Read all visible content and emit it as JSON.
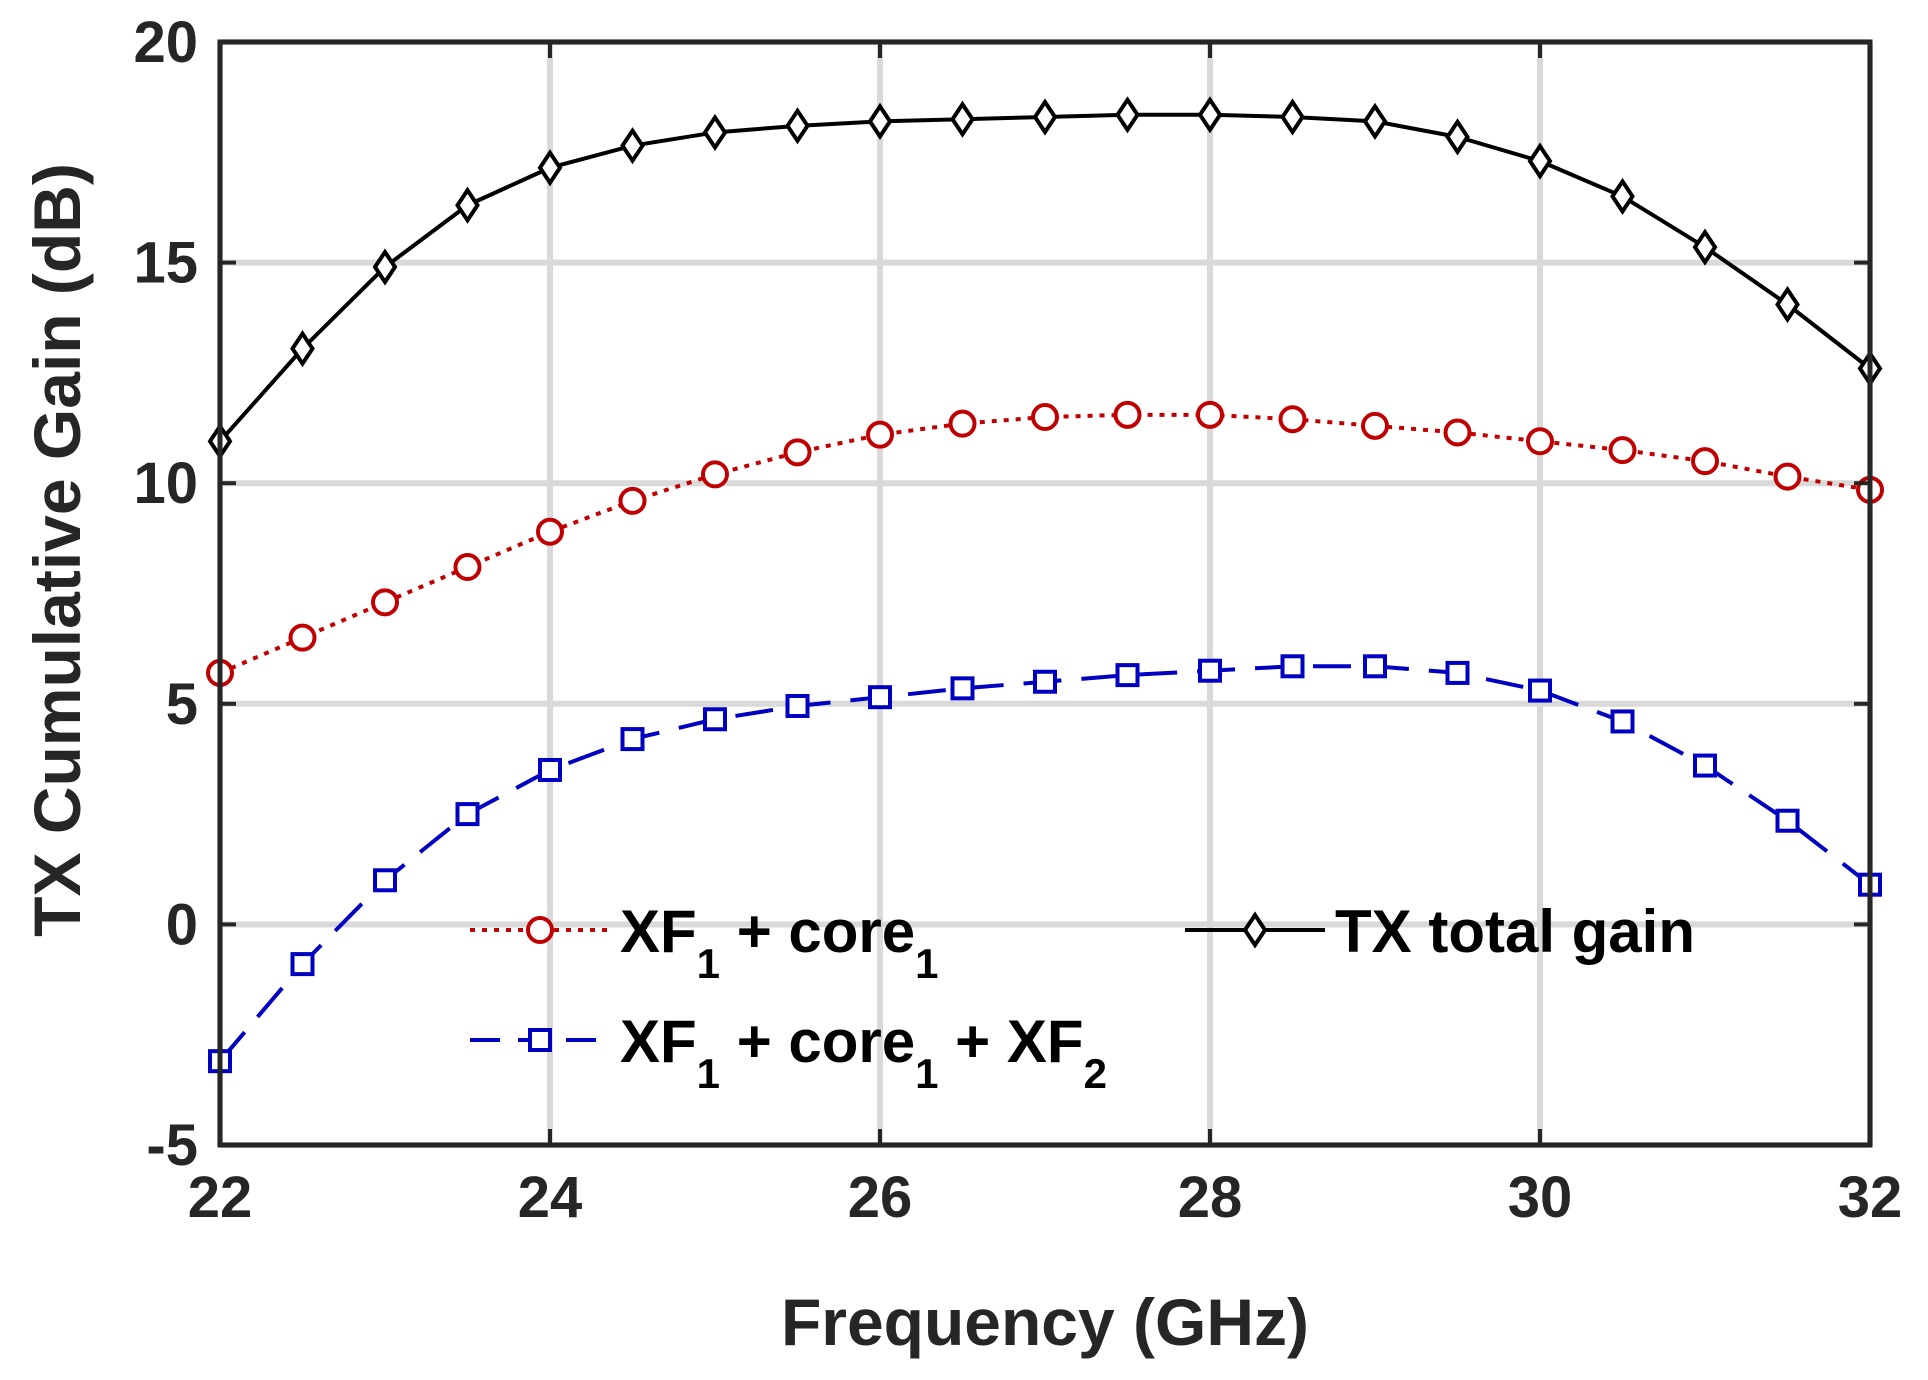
{
  "chart_data": {
    "type": "line",
    "xlabel": "Frequency (GHz)",
    "ylabel": "TX Cumulative Gain (dB)",
    "xlim": [
      22,
      32
    ],
    "ylim": [
      -5,
      20
    ],
    "xticks": [
      "22",
      "24",
      "26",
      "28",
      "30",
      "32"
    ],
    "yticks": [
      "-5",
      "0",
      "5",
      "10",
      "15",
      "20"
    ],
    "grid": true,
    "legend_position": "lower-center",
    "x": [
      22,
      22.5,
      23,
      23.5,
      24,
      24.5,
      25,
      25.5,
      26,
      26.5,
      27,
      27.5,
      28,
      28.5,
      29,
      29.5,
      30,
      30.5,
      31,
      31.5,
      32
    ],
    "series": [
      {
        "name": "XF1 + core1",
        "legend": {
          "main": "XF",
          "sub1": "1",
          "mid": " + core",
          "sub2": "1"
        },
        "color": "#c00000",
        "marker": "circle",
        "line_style": "dotted",
        "values": [
          5.7,
          6.5,
          7.3,
          8.1,
          8.9,
          9.6,
          10.2,
          10.7,
          11.1,
          11.35,
          11.5,
          11.55,
          11.55,
          11.45,
          11.3,
          11.15,
          10.95,
          10.75,
          10.5,
          10.15,
          9.85
        ]
      },
      {
        "name": "XF1 + core1 + XF2",
        "legend": {
          "main": "XF",
          "sub1": "1",
          "mid": " + core",
          "sub2": "1",
          "tail": " + XF",
          "sub3": "2"
        },
        "color": "#0000c0",
        "marker": "square",
        "line_style": "dashed",
        "values": [
          -3.1,
          -0.9,
          1.0,
          2.5,
          3.5,
          4.2,
          4.65,
          4.95,
          5.15,
          5.35,
          5.5,
          5.65,
          5.75,
          5.85,
          5.85,
          5.7,
          5.3,
          4.6,
          3.6,
          2.35,
          0.9
        ]
      },
      {
        "name": "TX total gain",
        "legend": {
          "main": "TX total gain"
        },
        "color": "#000000",
        "marker": "diamond",
        "line_style": "solid",
        "values": [
          10.95,
          13.05,
          14.9,
          16.3,
          17.15,
          17.65,
          17.95,
          18.1,
          18.2,
          18.25,
          18.3,
          18.35,
          18.35,
          18.3,
          18.2,
          17.85,
          17.3,
          16.5,
          15.35,
          14.05,
          12.6
        ]
      }
    ]
  }
}
